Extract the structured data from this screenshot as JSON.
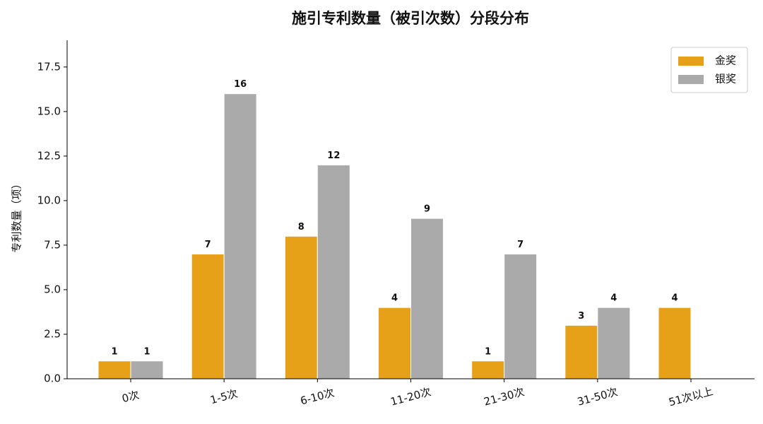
{
  "chart_data": {
    "type": "bar",
    "title": "施引专利数量（被引次数）分段分布",
    "y_label": "专利数量（项）",
    "categories": [
      "0次",
      "1-5次",
      "6-10次",
      "11-20次",
      "21-30次",
      "31-50次",
      "51次以上"
    ],
    "series": [
      {
        "name": "金奖",
        "color": "#E6A118",
        "values": [
          1,
          7,
          8,
          4,
          1,
          3,
          4
        ]
      },
      {
        "name": "银奖",
        "color": "#AAAAAA",
        "values": [
          1,
          16,
          12,
          9,
          7,
          4,
          null
        ]
      }
    ],
    "ylim": [
      0,
      19
    ],
    "yticks": [
      {
        "value": 0,
        "label": "0.0"
      },
      2.5,
      {
        "value": 5,
        "label": "5.0"
      },
      7.5,
      {
        "value": 10,
        "label": "10.0"
      },
      12.5,
      {
        "value": 15,
        "label": "15.0"
      },
      17.5
    ],
    "legend": "upper right"
  }
}
